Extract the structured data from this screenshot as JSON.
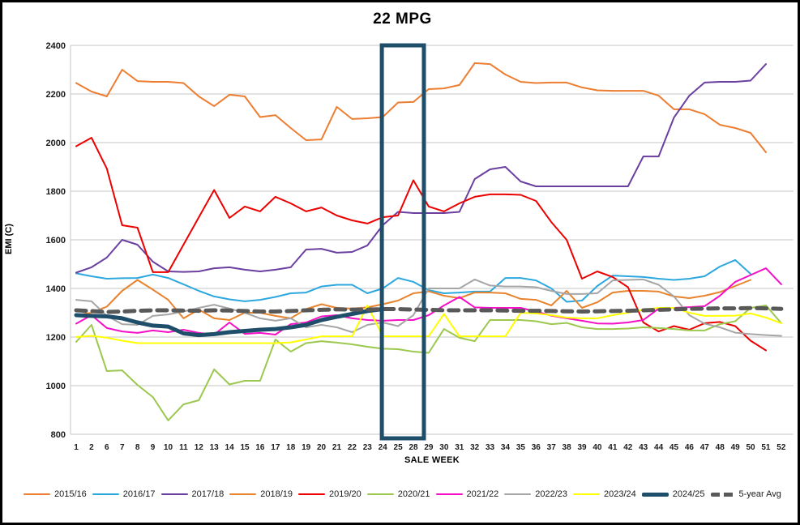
{
  "window": {
    "kind": "chart-image"
  },
  "chart_data": {
    "type": "line",
    "title": "22 MPG",
    "xlabel": "SALE WEEK",
    "ylabel": "EMI (C)",
    "ylim": [
      800,
      2400
    ],
    "yticks": [
      800,
      1000,
      1200,
      1400,
      1600,
      1800,
      2000,
      2200,
      2400
    ],
    "grid": true,
    "legend_position": "bottom",
    "x_labels": [
      "1",
      "2",
      "6",
      "7",
      "8",
      "9",
      "10",
      "11",
      "12",
      "13",
      "14",
      "15",
      "16",
      "17",
      "18",
      "19",
      "20",
      "21",
      "22",
      "23",
      "24",
      "25",
      "28",
      "29",
      "30",
      "31",
      "32",
      "33",
      "34",
      "35",
      "36",
      "37",
      "38",
      "39",
      "40",
      "41",
      "42",
      "43",
      "44",
      "45",
      "46",
      "47",
      "48",
      "49",
      "50",
      "51",
      "52"
    ],
    "highlight_box": {
      "from_week": "25",
      "to_week": "28",
      "color": "#1F4E6B"
    },
    "series": [
      {
        "name": "2015/16",
        "color": "#ED7D31",
        "width": 2,
        "dash": false,
        "values": [
          2245,
          2210,
          2190,
          2300,
          2253,
          2250,
          2250,
          2245,
          2190,
          2150,
          2197,
          2190,
          2105,
          2113,
          2060,
          2010,
          2013,
          2147,
          2097,
          2100,
          2105,
          2165,
          2167,
          2220,
          2223,
          2237,
          2327,
          2323,
          2280,
          2250,
          2245,
          2247,
          2247,
          2227,
          2215,
          2213,
          2213,
          2213,
          2193,
          2137,
          2137,
          2117,
          2073,
          2060,
          2040,
          1960,
          null
        ]
      },
      {
        "name": "2016/17",
        "color": "#2DA8DF",
        "width": 2,
        "dash": false,
        "values": [
          1462,
          1450,
          1440,
          1442,
          1443,
          1457,
          1443,
          1417,
          1390,
          1367,
          1355,
          1347,
          1353,
          1365,
          1380,
          1383,
          1408,
          1415,
          1415,
          1380,
          1400,
          1443,
          1427,
          1393,
          1380,
          1383,
          1387,
          1387,
          1443,
          1443,
          1433,
          1400,
          1345,
          1350,
          1410,
          1453,
          1450,
          1447,
          1440,
          1435,
          1440,
          1450,
          1490,
          1517,
          1460,
          null,
          null
        ]
      },
      {
        "name": "2017/18",
        "color": "#6B3FA0",
        "width": 2,
        "dash": false,
        "values": [
          1465,
          1487,
          1527,
          1600,
          1580,
          1510,
          1470,
          1468,
          1470,
          1483,
          1487,
          1477,
          1470,
          1477,
          1487,
          1560,
          1563,
          1547,
          1550,
          1577,
          1660,
          1715,
          1710,
          1710,
          1710,
          1715,
          1850,
          1890,
          1900,
          1840,
          1820,
          1820,
          1820,
          1820,
          1820,
          1820,
          1820,
          1943,
          1943,
          2103,
          2193,
          2247,
          2250,
          2250,
          2255,
          2323,
          null
        ]
      },
      {
        "name": "2018/19",
        "color": "#E8832E",
        "width": 2,
        "dash": false,
        "values": [
          1290,
          1300,
          1325,
          1390,
          1435,
          1395,
          1353,
          1277,
          1313,
          1277,
          1270,
          1300,
          1300,
          1287,
          1277,
          1315,
          1335,
          1320,
          1317,
          1322,
          1335,
          1350,
          1380,
          1388,
          1370,
          1360,
          1383,
          1383,
          1380,
          1357,
          1353,
          1330,
          1390,
          1320,
          1343,
          1383,
          1390,
          1390,
          1387,
          1367,
          1360,
          1370,
          1385,
          1410,
          1435,
          null,
          null
        ]
      },
      {
        "name": "2019/20",
        "color": "#ED0000",
        "width": 2,
        "dash": false,
        "values": [
          1985,
          2020,
          1893,
          1660,
          1650,
          1467,
          1467,
          1580,
          1693,
          1805,
          1690,
          1737,
          1717,
          1777,
          1750,
          1717,
          1733,
          1700,
          1680,
          1667,
          1693,
          1700,
          1845,
          1737,
          1717,
          1750,
          1777,
          1787,
          1787,
          1785,
          1760,
          1673,
          1600,
          1440,
          1470,
          1447,
          1405,
          1260,
          1223,
          1245,
          1230,
          1257,
          1262,
          1245,
          1185,
          1145,
          null
        ]
      },
      {
        "name": "2020/21",
        "color": "#9CC84F",
        "width": 2,
        "dash": false,
        "values": [
          1180,
          1250,
          1060,
          1063,
          1003,
          953,
          857,
          923,
          940,
          1067,
          1005,
          1020,
          1020,
          1190,
          1140,
          1175,
          1183,
          1177,
          1170,
          1160,
          1152,
          1150,
          1140,
          1135,
          1233,
          1197,
          1183,
          1270,
          1270,
          1270,
          1265,
          1253,
          1258,
          1240,
          1233,
          1233,
          1235,
          1240,
          1237,
          1233,
          1227,
          1227,
          1253,
          1265,
          1320,
          1330,
          1257
        ]
      },
      {
        "name": "2021/22",
        "color": "#F50FC6",
        "width": 2,
        "dash": false,
        "values": [
          1255,
          1290,
          1237,
          1223,
          1217,
          1227,
          1220,
          1230,
          1217,
          1210,
          1260,
          1213,
          1217,
          1210,
          1253,
          1260,
          1285,
          1290,
          1277,
          1270,
          1267,
          1270,
          1270,
          1290,
          1330,
          1365,
          1322,
          1320,
          1320,
          1320,
          1305,
          1288,
          1277,
          1267,
          1256,
          1255,
          1260,
          1270,
          1317,
          1320,
          1323,
          1327,
          1370,
          1427,
          1455,
          1483,
          1417
        ]
      },
      {
        "name": "2022/23",
        "color": "#A6A6A6",
        "width": 2,
        "dash": false,
        "values": [
          1353,
          1347,
          1287,
          1253,
          1250,
          1287,
          1293,
          1305,
          1320,
          1333,
          1317,
          1300,
          1277,
          1267,
          1277,
          1240,
          1250,
          1240,
          1220,
          1250,
          1260,
          1245,
          1290,
          1400,
          1400,
          1400,
          1437,
          1412,
          1408,
          1408,
          1405,
          1390,
          1377,
          1377,
          1380,
          1433,
          1435,
          1437,
          1415,
          1367,
          1290,
          1255,
          1240,
          1218,
          1212,
          1208,
          1205
        ]
      },
      {
        "name": "2023/24",
        "color": "#FFFF00",
        "width": 2,
        "dash": false,
        "values": [
          1200,
          1205,
          1197,
          1185,
          1175,
          1175,
          1175,
          1175,
          1175,
          1175,
          1175,
          1175,
          1175,
          1175,
          1178,
          1190,
          1203,
          1203,
          1203,
          1330,
          1203,
          1203,
          1203,
          1203,
          1295,
          1203,
          1203,
          1203,
          1203,
          1300,
          1297,
          1290,
          1280,
          1277,
          1277,
          1290,
          1300,
          1313,
          1320,
          1320,
          1300,
          1287,
          1287,
          1288,
          1297,
          1280,
          1257
        ]
      },
      {
        "name": "2024/25",
        "color": "#1F4E6B",
        "width": 5,
        "dash": false,
        "values": [
          1290,
          1287,
          1285,
          1277,
          1260,
          1247,
          1243,
          1215,
          1208,
          1212,
          1220,
          1225,
          1230,
          1233,
          1240,
          1250,
          1270,
          1283,
          1295,
          1307,
          1315,
          null,
          null,
          null,
          null,
          null,
          null,
          null,
          null,
          null,
          null,
          null,
          null,
          null,
          null,
          null,
          null,
          null,
          null,
          null,
          null,
          null,
          null,
          null,
          null,
          null,
          null
        ]
      },
      {
        "name": "5-year Avg",
        "color": "#595959",
        "width": 5,
        "dash": true,
        "values": [
          1310,
          1307,
          1303,
          1305,
          1308,
          1310,
          1310,
          1309,
          1308,
          1310,
          1309,
          1307,
          1305,
          1305,
          1307,
          1310,
          1312,
          1314,
          1313,
          1313,
          1315,
          1315,
          1313,
          1312,
          1310,
          1310,
          1310,
          1310,
          1309,
          1308,
          1308,
          1307,
          1306,
          1305,
          1306,
          1307,
          1308,
          1310,
          1312,
          1314,
          1316,
          1317,
          1318,
          1318,
          1319,
          1318,
          1316
        ]
      }
    ]
  }
}
